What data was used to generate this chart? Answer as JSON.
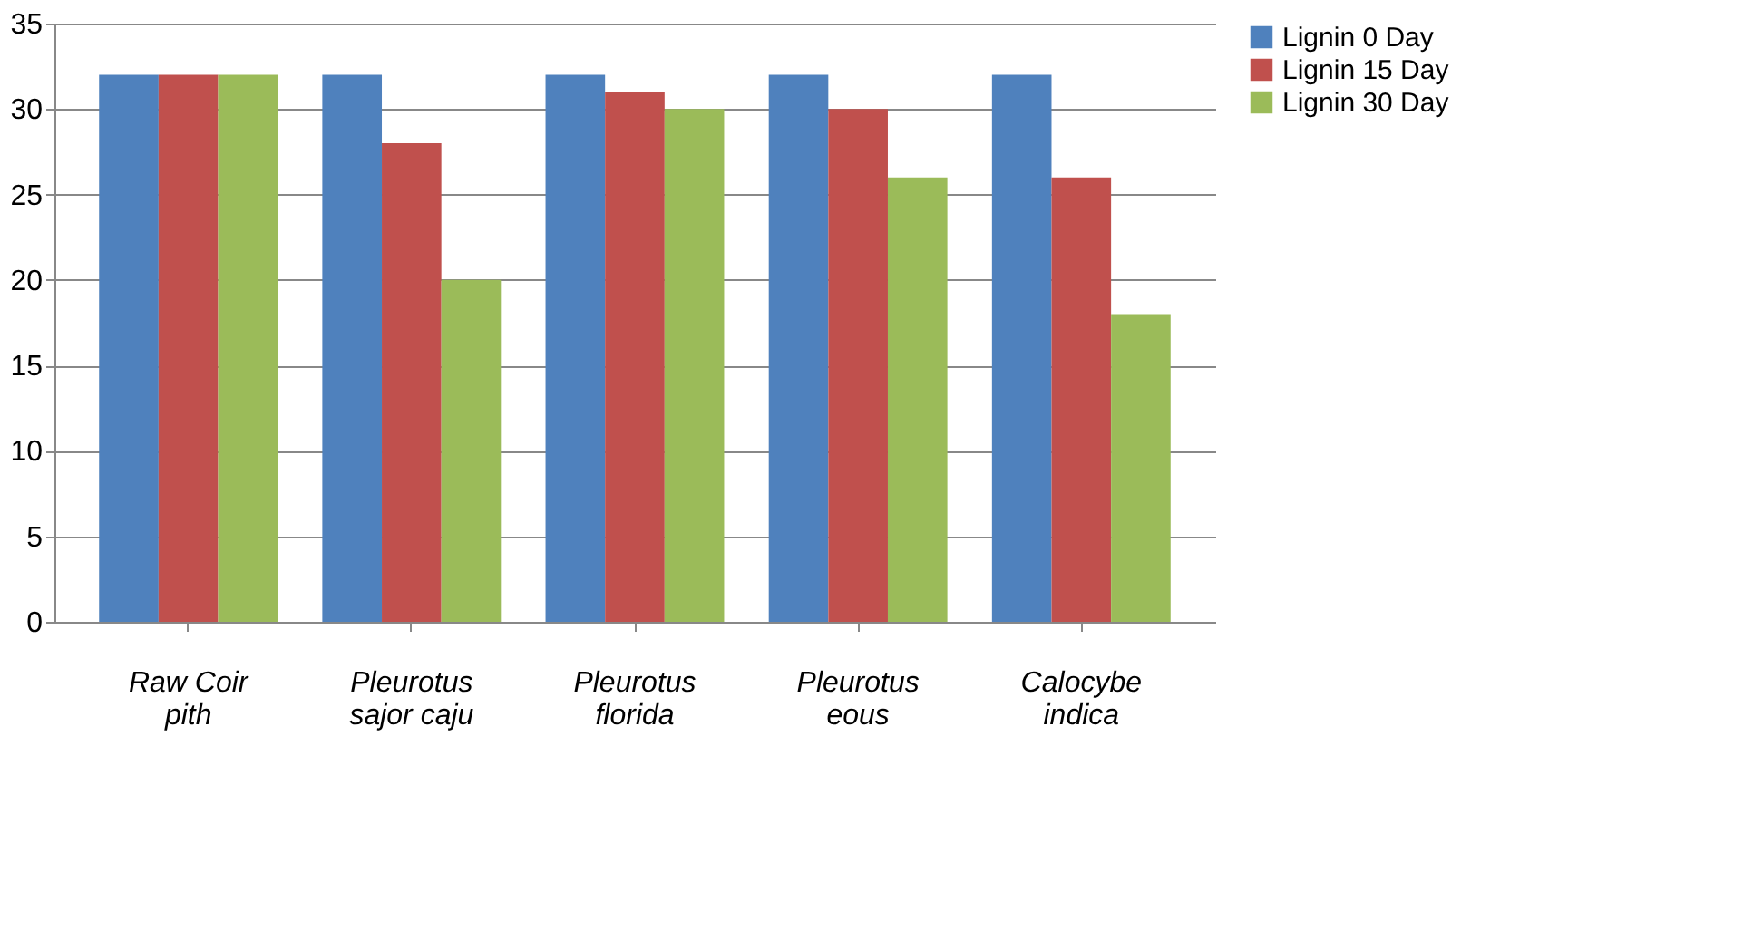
{
  "chart_data": {
    "type": "bar",
    "categories": [
      "Raw Coir\npith",
      "Pleurotus\nsajor caju",
      "Pleurotus\nflorida",
      "Pleurotus\neous",
      "Calocybe\nindica"
    ],
    "series": [
      {
        "name": "Lignin 0 Day",
        "color": "#4f81bd",
        "values": [
          32,
          32,
          32,
          32,
          32
        ]
      },
      {
        "name": "Lignin 15 Day",
        "color": "#c0504d",
        "values": [
          32,
          28,
          31,
          30,
          26
        ]
      },
      {
        "name": "Lignin 30 Day",
        "color": "#9bbb59",
        "values": [
          32,
          20,
          30,
          26,
          18
        ]
      }
    ],
    "ylim": [
      0,
      35
    ],
    "yticks": [
      0,
      5,
      10,
      15,
      20,
      25,
      30,
      35
    ],
    "grid": "y",
    "legend": "right"
  }
}
